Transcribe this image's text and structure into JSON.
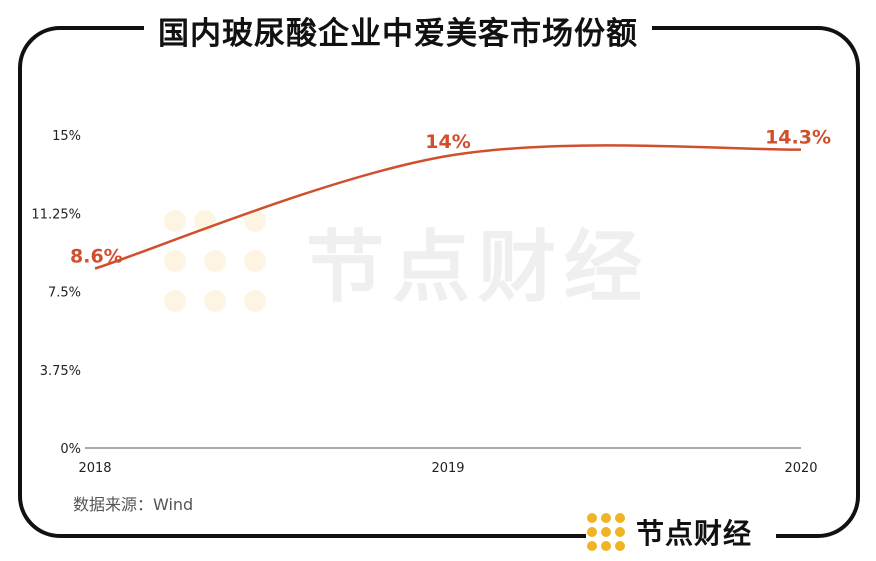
{
  "title": "国内玻尿酸企业中爱美客市场份额",
  "source": "数据来源：Wind",
  "brand": {
    "name": "节点财经",
    "color": "#f0b323"
  },
  "watermark": "节点财经",
  "colors": {
    "line": "#d04f2c",
    "label": "#d04f2c",
    "axis": "#555555",
    "frame": "#111111"
  },
  "chart_data": {
    "type": "line",
    "title": "国内玻尿酸企业中爱美客市场份额",
    "categories": [
      "2018",
      "2019",
      "2020"
    ],
    "series": [
      {
        "name": "爱美客市场份额",
        "values": [
          8.6,
          14.0,
          14.3
        ]
      }
    ],
    "data_labels": [
      "8.6%",
      "14%",
      "14.3%"
    ],
    "yticks": [
      "0%",
      "3.75%",
      "7.5%",
      "11.25%",
      "15%"
    ],
    "ytick_values": [
      0,
      3.75,
      7.5,
      11.25,
      15
    ],
    "ylim": [
      0,
      15
    ],
    "xlabel": "",
    "ylabel": "",
    "grid": false,
    "smooth": true
  }
}
